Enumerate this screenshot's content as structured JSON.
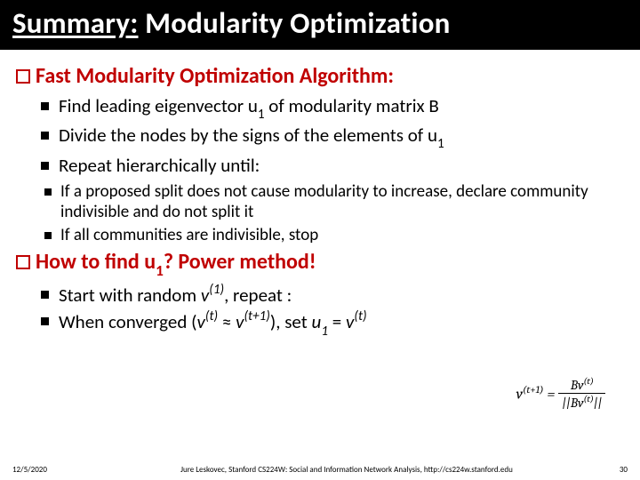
{
  "title": {
    "underlined": "Summary:",
    "rest": " Modularity Optimization"
  },
  "sections": [
    {
      "heading": "Fast Modularity Optimization Algorithm:",
      "level1": [
        {
          "html": "Find leading eigenvector u<span class='sub'>1</span> of modularity matrix B"
        },
        {
          "html": "Divide the nodes by the signs of the elements of u<span class='sub'>1</span>"
        },
        {
          "html": "Repeat hierarchically until:"
        }
      ],
      "level2": [
        {
          "html": "If a proposed split does not cause modularity to increase, declare community indivisible and do not split it"
        },
        {
          "html": "If all communities are indivisible, stop"
        }
      ]
    },
    {
      "heading_html": "How to find u<span class='sub'>1</span>? Power method!",
      "level1": [
        {
          "html": "Start with random <span class='ital'>v</span><span class='sup ital'>(1)</span>, repeat :"
        },
        {
          "html": "When converged (<span class='ital'>v</span><span class='sup ital'>(t)</span> ≈ <span class='ital'>v</span><span class='sup ital'>(t+1)</span>), set <span class='ital'>u</span><span class='sub ital'>1</span> = <span class='ital'>v</span><span class='sup ital'>(t)</span>"
        }
      ]
    }
  ],
  "formula": {
    "lhs": "v<sup style='font-size:0.7em'>(t+1)</sup> =",
    "num": "Bv<sup style='font-size:0.7em'>(t)</sup>",
    "den": "||Bv<sup style='font-size:0.7em'>(t)</sup>||"
  },
  "footer": {
    "date": "12/5/2020",
    "credit": "Jure Leskovec, Stanford CS224W: Social and Information Network Analysis, http://cs224w.stanford.edu",
    "page": "30"
  },
  "colors": {
    "title_bg": "#000000",
    "title_fg": "#ffffff",
    "heading_fg": "#c00000",
    "body_fg": "#000000",
    "page_bg": "#ffffff"
  }
}
